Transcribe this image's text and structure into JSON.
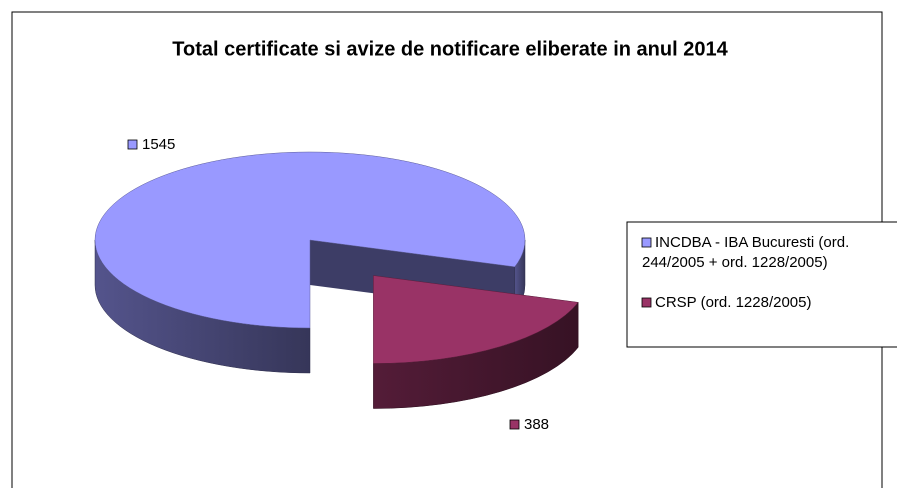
{
  "chart_data": {
    "type": "pie",
    "title": "Total certificate si avize de notificare eliberate in anul 2014",
    "categories": [
      "INCDBA - IBA Bucuresti (ord. 244/2005 + ord. 1228/2005)",
      "CRSP (ord. 1228/2005)"
    ],
    "values": [
      1545,
      388
    ],
    "colors": [
      "#9999ff",
      "#993366"
    ],
    "legend": "right"
  }
}
